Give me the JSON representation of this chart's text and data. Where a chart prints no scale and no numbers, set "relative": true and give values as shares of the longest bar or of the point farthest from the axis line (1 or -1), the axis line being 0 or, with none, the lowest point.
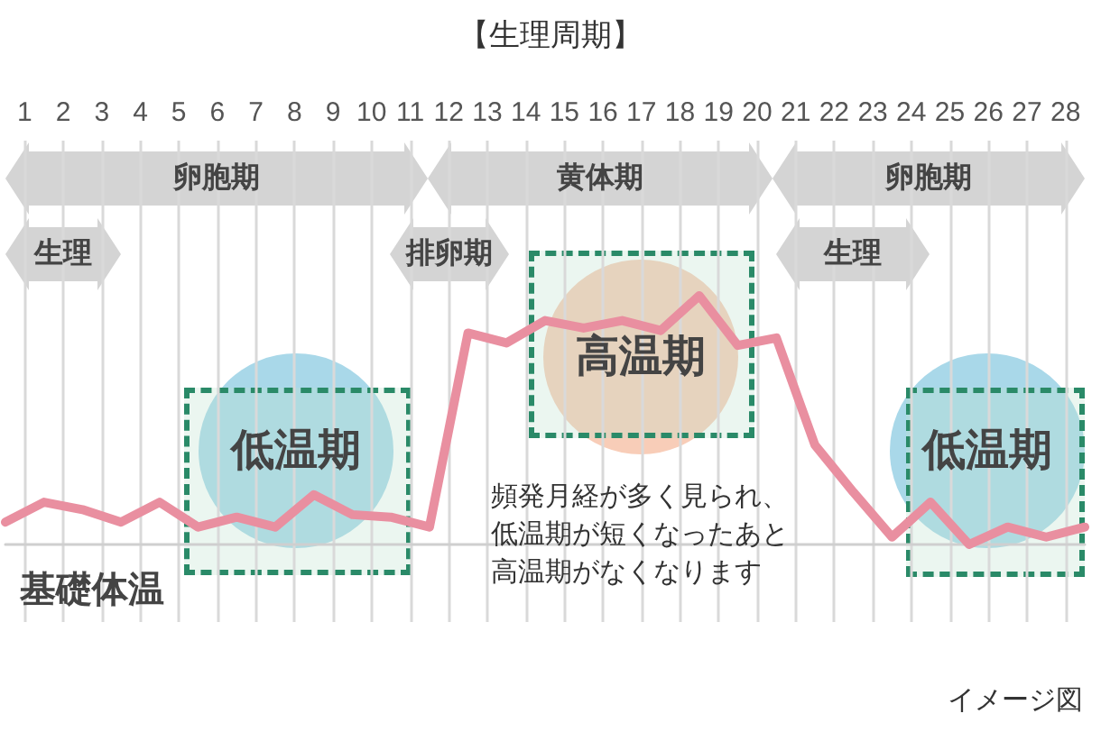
{
  "chart_data": {
    "type": "line",
    "title": "【生理周期】",
    "x": [
      0.5,
      1.5,
      2.5,
      3.5,
      4.5,
      5.5,
      6.5,
      7.5,
      8.5,
      9.5,
      10.5,
      11.5,
      12.5,
      13.5,
      14.5,
      15.5,
      16.5,
      17.5,
      18.5,
      19.5,
      20.5,
      21.5,
      22.5,
      23.5,
      24.5,
      25.5,
      26.5,
      27.5,
      28.5
    ],
    "series": [
      {
        "name": "基礎体温",
        "color": "#e98fa0",
        "values": [
          0.09,
          0.17,
          0.14,
          0.09,
          0.17,
          0.07,
          0.11,
          0.07,
          0.2,
          0.12,
          0.11,
          0.07,
          0.85,
          0.81,
          0.9,
          0.87,
          0.9,
          0.86,
          1,
          0.8,
          0.83,
          0.4,
          0.21,
          0.03,
          0.17,
          0,
          0.07,
          0.03,
          0.07
        ]
      }
    ],
    "relative": true,
    "xlim": [
      0.5,
      28.5
    ],
    "xticks": [
      1,
      2,
      3,
      4,
      5,
      6,
      7,
      8,
      9,
      10,
      11,
      12,
      13,
      14,
      15,
      16,
      17,
      18,
      19,
      20,
      21,
      22,
      23,
      24,
      25,
      26,
      27,
      28
    ],
    "annotations": [
      "卵胞期",
      "黄体期",
      "卵胞期",
      "生理",
      "排卵期",
      "生理",
      "低温期",
      "高温期",
      "低温期",
      "頻発月経が多く見られ、低温期が短くなったあと高温期がなくなります",
      "イメージ図"
    ],
    "grid": "x",
    "legend": false,
    "marker": "none",
    "line_style": "solid"
  }
}
